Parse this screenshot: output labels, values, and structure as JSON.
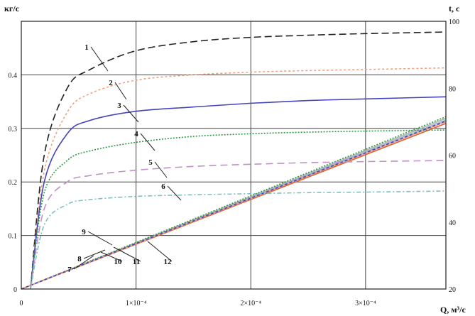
{
  "chart_data": {
    "type": "line",
    "left_axis": {
      "label": "кг/с",
      "range": [
        0,
        0.5
      ],
      "ticks": [
        "0",
        "0.1",
        "0.2",
        "0.3",
        "0.4"
      ],
      "tick_values": [
        0,
        0.1,
        0.2,
        0.3,
        0.4
      ]
    },
    "right_axis": {
      "label": "t, c",
      "range": [
        20,
        100
      ],
      "ticks": [
        "20",
        "40",
        "60",
        "80",
        "100"
      ],
      "tick_values": [
        20,
        40,
        60,
        80,
        100
      ]
    },
    "x_axis": {
      "label": "Q, м³/с",
      "range": [
        0,
        0.00037
      ],
      "ticks": [
        "0",
        "1×10⁻⁴",
        "2×10⁻⁴",
        "3×10⁻⁴"
      ],
      "tick_values": [
        0,
        0.0001,
        0.0002,
        0.0003
      ]
    },
    "grid": true,
    "mass_flow_series": [
      {
        "label": "1",
        "axis": "left",
        "color": "#222222",
        "dash": "10 5",
        "x": [
          8e-06,
          2e-05,
          4e-05,
          6e-05,
          0.0001,
          0.00015,
          0.0002,
          0.00025,
          0.0003,
          0.00037
        ],
        "y": [
          0,
          0.25,
          0.375,
          0.41,
          0.445,
          0.462,
          0.47,
          0.474,
          0.477,
          0.48
        ]
      },
      {
        "label": "2",
        "axis": "left",
        "color": "#f0a080",
        "dash": "3 3",
        "x": [
          8e-06,
          2e-05,
          4e-05,
          6e-05,
          0.0001,
          0.00015,
          0.0002,
          0.00025,
          0.0003,
          0.00037
        ],
        "y": [
          0,
          0.22,
          0.33,
          0.365,
          0.39,
          0.4,
          0.405,
          0.408,
          0.41,
          0.413
        ]
      },
      {
        "label": "3",
        "axis": "left",
        "color": "#4444bb",
        "dash": "",
        "x": [
          8e-06,
          2e-05,
          4e-05,
          6e-05,
          0.0001,
          0.00015,
          0.0002,
          0.00025,
          0.0003,
          0.00037
        ],
        "y": [
          0,
          0.2,
          0.29,
          0.315,
          0.332,
          0.34,
          0.347,
          0.352,
          0.355,
          0.359
        ]
      },
      {
        "label": "4",
        "axis": "left",
        "color": "#2a9a40",
        "dash": "2 2",
        "x": [
          8e-06,
          2e-05,
          4e-05,
          6e-05,
          0.0001,
          0.00015,
          0.0002,
          0.00025,
          0.0003,
          0.00037
        ],
        "y": [
          0,
          0.18,
          0.24,
          0.258,
          0.274,
          0.285,
          0.29,
          0.293,
          0.295,
          0.297
        ]
      },
      {
        "label": "5",
        "axis": "left",
        "color": "#c090c8",
        "dash": "10 6",
        "x": [
          8e-06,
          2e-05,
          4e-05,
          6e-05,
          0.0001,
          0.00015,
          0.0002,
          0.00025,
          0.0003,
          0.00037
        ],
        "y": [
          0,
          0.15,
          0.2,
          0.212,
          0.222,
          0.229,
          0.233,
          0.236,
          0.238,
          0.24
        ]
      },
      {
        "label": "6",
        "axis": "left",
        "color": "#80c0c0",
        "dash": "6 3 2 3",
        "x": [
          8e-06,
          2e-05,
          4e-05,
          6e-05,
          0.0001,
          0.00015,
          0.0002,
          0.00025,
          0.0003,
          0.00037
        ],
        "y": [
          0,
          0.12,
          0.158,
          0.167,
          0.173,
          0.176,
          0.178,
          0.18,
          0.181,
          0.183
        ]
      }
    ],
    "time_series": [
      {
        "label": "7",
        "axis": "right",
        "color": "#9ab0d0",
        "dash": "",
        "x": [
          0,
          0.00037
        ],
        "y": [
          20,
          70.5
        ]
      },
      {
        "label": "8",
        "axis": "right",
        "color": "#b0b0b0",
        "dash": "",
        "x": [
          0,
          0.00037
        ],
        "y": [
          20,
          71
        ]
      },
      {
        "label": "9",
        "axis": "right",
        "color": "#2a9a40",
        "dash": "2 2",
        "x": [
          0,
          0.00037
        ],
        "y": [
          20,
          71.5
        ]
      },
      {
        "label": "10",
        "axis": "right",
        "color": "#e06030",
        "dash": "",
        "x": [
          0,
          0.00037
        ],
        "y": [
          20,
          69.5
        ]
      },
      {
        "label": "11",
        "axis": "right",
        "color": "#f0a080",
        "dash": "",
        "x": [
          0,
          0.00037
        ],
        "y": [
          20,
          70
        ]
      },
      {
        "label": "12",
        "axis": "right",
        "color": "#4444bb",
        "dash": "4 3",
        "x": [
          0,
          0.00037
        ],
        "y": [
          20,
          70.2
        ]
      }
    ]
  }
}
